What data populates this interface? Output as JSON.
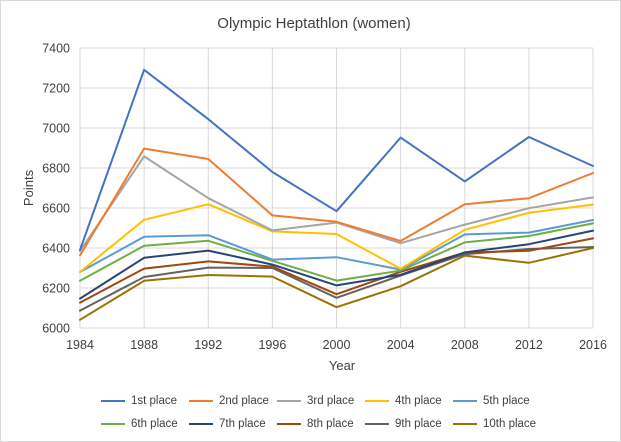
{
  "chart_data": {
    "type": "line",
    "title": "Olympic Heptathlon (women)",
    "xlabel": "Year",
    "ylabel": "Points",
    "x": [
      1984,
      1988,
      1992,
      1996,
      2000,
      2004,
      2008,
      2012,
      2016
    ],
    "x_tick_labels": [
      "1984",
      "1988",
      "1992",
      "1996",
      "2000",
      "2004",
      "2008",
      "2012",
      "2016"
    ],
    "ylim": [
      6000,
      7400
    ],
    "y_ticks": [
      6000,
      6200,
      6400,
      6600,
      6800,
      7000,
      7200,
      7400
    ],
    "y_tick_labels": [
      "6000",
      "6200",
      "6400",
      "6600",
      "6800",
      "7000",
      "7200",
      "7400"
    ],
    "grid": true,
    "legend_position": "bottom",
    "series": [
      {
        "name": "1st place",
        "color": "#4472C4",
        "values": [
          6390,
          7291,
          7044,
          6780,
          6584,
          6952,
          6733,
          6955,
          6810
        ]
      },
      {
        "name": "2nd place",
        "color": "#ED7D31",
        "values": [
          6363,
          6897,
          6845,
          6563,
          6531,
          6435,
          6619,
          6649,
          6775
        ]
      },
      {
        "name": "3rd place",
        "color": "#A5A5A5",
        "values": [
          6385,
          6858,
          6649,
          6488,
          6527,
          6424,
          6517,
          6599,
          6653
        ]
      },
      {
        "name": "4th place",
        "color": "#FFC000",
        "values": [
          6280,
          6541,
          6619,
          6483,
          6470,
          6296,
          6491,
          6576,
          6617
        ]
      },
      {
        "name": "5th place",
        "color": "#5B9BD5",
        "values": [
          6280,
          6456,
          6464,
          6342,
          6354,
          6292,
          6468,
          6477,
          6540
        ]
      },
      {
        "name": "6th place",
        "color": "#70AD47",
        "values": [
          6236,
          6411,
          6436,
          6336,
          6237,
          6287,
          6428,
          6460,
          6523
        ]
      },
      {
        "name": "7th place",
        "color": "#264478",
        "values": [
          6147,
          6351,
          6387,
          6317,
          6213,
          6266,
          6378,
          6419,
          6487
        ]
      },
      {
        "name": "8th place",
        "color": "#9E480E",
        "values": [
          6127,
          6297,
          6333,
          6307,
          6169,
          6281,
          6377,
          6386,
          6448
        ]
      },
      {
        "name": "9th place",
        "color": "#636363",
        "values": [
          6087,
          6255,
          6302,
          6300,
          6151,
          6262,
          6369,
          6395,
          6405
        ]
      },
      {
        "name": "10th place",
        "color": "#997300",
        "values": [
          6041,
          6236,
          6265,
          6257,
          6104,
          6209,
          6362,
          6326,
          6400
        ]
      }
    ]
  }
}
